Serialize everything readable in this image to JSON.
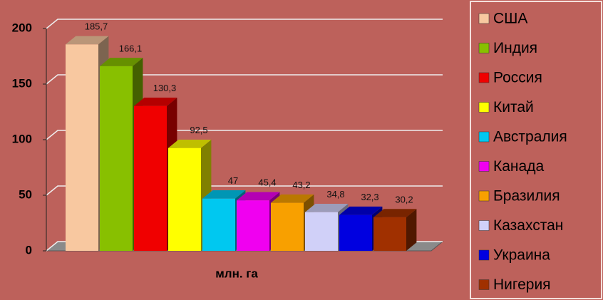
{
  "chart_data": {
    "type": "bar",
    "x_label": "млн. га",
    "series": [
      {
        "name": "США",
        "color": "#f8c8a0",
        "values": [
          185.7
        ],
        "value_labels": [
          "185,7"
        ]
      },
      {
        "name": "Индия",
        "color": "#88c000",
        "values": [
          166.1
        ],
        "value_labels": [
          "166,1"
        ]
      },
      {
        "name": "Россия",
        "color": "#f00000",
        "values": [
          130.3
        ],
        "value_labels": [
          "130,3"
        ]
      },
      {
        "name": "Китай",
        "color": "#ffff00",
        "values": [
          92.5
        ],
        "value_labels": [
          "92,5"
        ]
      },
      {
        "name": "Австралия",
        "color": "#00c8f0",
        "values": [
          47
        ],
        "value_labels": [
          "47"
        ]
      },
      {
        "name": "Канада",
        "color": "#f000f0",
        "values": [
          45.4
        ],
        "value_labels": [
          "45,4"
        ]
      },
      {
        "name": "Бразилия",
        "color": "#f8a000",
        "values": [
          43.2
        ],
        "value_labels": [
          "43,2"
        ]
      },
      {
        "name": "Казахстан",
        "color": "#d0d0f8",
        "values": [
          34.8
        ],
        "value_labels": [
          "34,8"
        ]
      },
      {
        "name": "Украина",
        "color": "#0000e0",
        "values": [
          32.3
        ],
        "value_labels": [
          "32,3"
        ]
      },
      {
        "name": "Нигерия",
        "color": "#a03000",
        "values": [
          30.2
        ],
        "value_labels": [
          "30,2"
        ]
      }
    ],
    "ylim": [
      0,
      200
    ],
    "yticks": [
      0,
      50,
      100,
      150,
      200
    ],
    "grid": true,
    "legend": "right"
  }
}
